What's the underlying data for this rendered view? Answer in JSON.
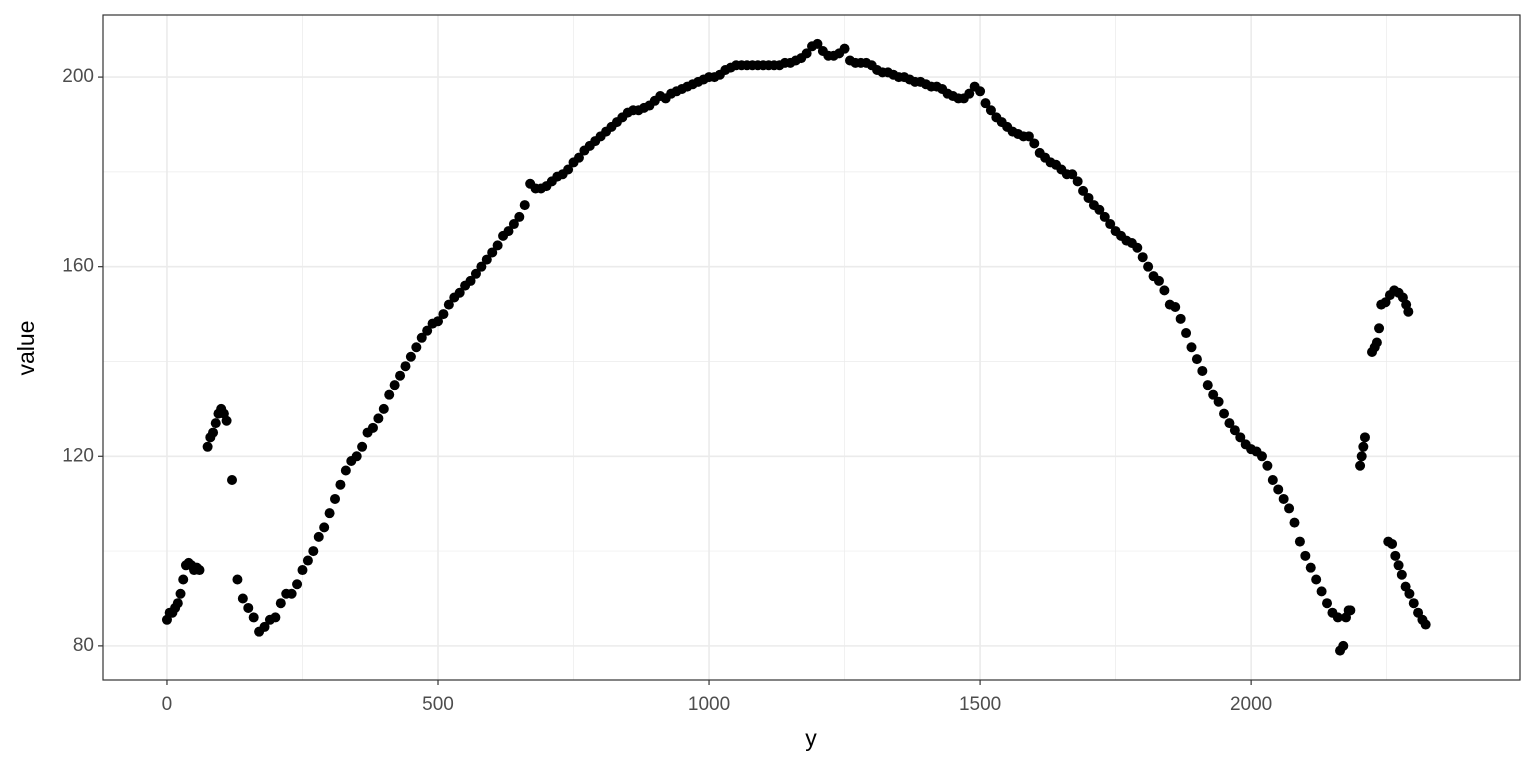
{
  "chart_data": {
    "type": "scatter",
    "x_label": "y",
    "y_label": "value",
    "color": "#000000",
    "xlim": [
      -118,
      2496
    ],
    "ylim": [
      72.8,
      213.1
    ],
    "xticks": [
      0,
      500,
      1000,
      1500,
      2000
    ],
    "yticks": [
      80,
      120,
      160,
      200
    ],
    "xticks_minor": [
      250,
      750,
      1250,
      1750,
      2250
    ],
    "yticks_minor": [
      100,
      140,
      180
    ],
    "grid": true,
    "x": [
      0,
      5,
      10,
      15,
      20,
      25,
      30,
      35,
      40,
      45,
      50,
      55,
      60,
      75,
      80,
      85,
      90,
      95,
      100,
      105,
      110,
      120,
      130,
      140,
      150,
      160,
      170,
      180,
      190,
      200,
      210,
      220,
      230,
      240,
      250,
      260,
      270,
      280,
      290,
      300,
      310,
      320,
      330,
      340,
      350,
      360,
      370,
      380,
      390,
      400,
      410,
      420,
      430,
      440,
      450,
      460,
      470,
      480,
      490,
      500,
      510,
      520,
      530,
      540,
      550,
      560,
      570,
      580,
      590,
      600,
      610,
      620,
      630,
      640,
      650,
      660,
      670,
      680,
      690,
      700,
      710,
      720,
      730,
      740,
      750,
      760,
      770,
      780,
      790,
      800,
      810,
      820,
      830,
      840,
      850,
      860,
      870,
      880,
      890,
      900,
      910,
      920,
      930,
      940,
      950,
      960,
      970,
      980,
      990,
      1000,
      1010,
      1020,
      1030,
      1040,
      1050,
      1060,
      1070,
      1080,
      1090,
      1100,
      1110,
      1120,
      1130,
      1140,
      1150,
      1160,
      1170,
      1180,
      1190,
      1200,
      1210,
      1220,
      1230,
      1240,
      1250,
      1260,
      1270,
      1280,
      1290,
      1300,
      1310,
      1320,
      1330,
      1340,
      1350,
      1360,
      1370,
      1380,
      1390,
      1400,
      1410,
      1420,
      1430,
      1440,
      1450,
      1460,
      1470,
      1480,
      1490,
      1500,
      1510,
      1520,
      1530,
      1540,
      1550,
      1560,
      1570,
      1580,
      1590,
      1600,
      1610,
      1620,
      1630,
      1640,
      1650,
      1660,
      1670,
      1680,
      1690,
      1700,
      1710,
      1720,
      1730,
      1740,
      1750,
      1760,
      1770,
      1780,
      1790,
      1800,
      1810,
      1820,
      1830,
      1840,
      1850,
      1860,
      1870,
      1880,
      1890,
      1900,
      1910,
      1920,
      1930,
      1940,
      1950,
      1960,
      1970,
      1980,
      1990,
      2000,
      2010,
      2020,
      2030,
      2040,
      2050,
      2060,
      2070,
      2080,
      2090,
      2100,
      2110,
      2120,
      2130,
      2140,
      2150,
      2160,
      2164,
      2170,
      2175,
      2180,
      2183,
      2201,
      2204,
      2207,
      2210,
      2223,
      2228,
      2232,
      2236,
      2240,
      2248,
      2256,
      2264,
      2272,
      2280,
      2286,
      2290,
      2253,
      2260,
      2266,
      2272,
      2278,
      2285,
      2292,
      2300,
      2308,
      2316,
      2322
    ],
    "values": [
      85.5,
      87,
      87,
      88,
      89,
      91,
      94,
      97,
      97.5,
      97,
      96,
      96.5,
      96,
      122,
      124,
      125,
      127,
      129,
      130,
      129,
      127.5,
      115,
      94,
      90,
      88,
      86,
      83,
      84,
      85.5,
      86,
      89,
      91,
      91,
      93,
      96,
      98,
      100,
      103,
      105,
      108,
      111,
      114,
      117,
      119,
      120,
      122,
      125,
      126,
      128,
      130,
      133,
      135,
      137,
      139,
      141,
      143,
      145,
      146.5,
      148,
      148.5,
      150,
      152,
      153.5,
      154.5,
      156,
      157,
      158.5,
      160,
      161.5,
      163,
      164.5,
      166.5,
      167.5,
      169,
      170.5,
      173,
      177.5,
      176.5,
      176.5,
      177,
      178,
      179,
      179.5,
      180.5,
      182,
      183,
      184.5,
      185.5,
      186.5,
      187.5,
      188.5,
      189.5,
      190.5,
      191.5,
      192.5,
      193,
      193,
      193.5,
      194,
      195,
      196,
      195.5,
      196.5,
      197,
      197.5,
      198,
      198.5,
      199,
      199.5,
      200,
      200,
      200.5,
      201.5,
      202,
      202.5,
      202.5,
      202.5,
      202.5,
      202.5,
      202.5,
      202.5,
      202.5,
      202.5,
      203,
      203,
      203.5,
      204,
      205,
      206.5,
      207,
      205.5,
      204.5,
      204.5,
      205,
      206,
      203.5,
      203,
      203,
      203,
      202.5,
      201.5,
      201,
      201,
      200.5,
      200,
      200,
      199.5,
      199,
      199,
      198.5,
      198,
      198,
      197.5,
      196.5,
      196,
      195.5,
      195.5,
      196.5,
      198,
      197,
      194.5,
      193,
      191.5,
      190.5,
      189.5,
      188.5,
      188,
      187.5,
      187.5,
      186,
      184,
      183,
      182,
      181.5,
      180.5,
      179.5,
      179.5,
      178,
      176,
      174.5,
      173,
      172,
      170.5,
      169,
      167.5,
      166.5,
      165.5,
      165,
      164,
      162,
      160,
      158,
      157,
      155,
      152,
      151.5,
      149,
      146,
      143,
      140.5,
      138,
      135,
      133,
      131.5,
      129,
      127,
      125.5,
      124,
      122.5,
      121.5,
      121,
      120,
      118,
      115,
      113,
      111,
      109,
      106,
      102,
      99,
      96.5,
      94,
      91.5,
      89,
      87,
      86,
      79,
      80,
      86,
      87.5,
      87.5,
      118,
      120,
      122,
      124,
      142,
      143,
      144,
      147,
      152,
      152.5,
      154,
      155,
      154.5,
      153.5,
      152,
      150.5,
      102,
      101.5,
      99,
      97,
      95,
      92.5,
      91,
      89,
      87,
      85.5,
      84.5
    ]
  }
}
